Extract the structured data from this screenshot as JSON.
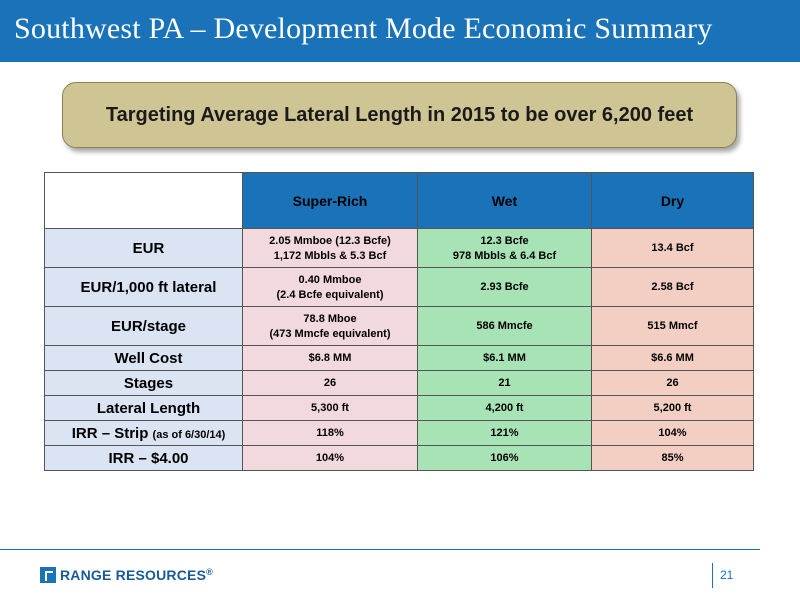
{
  "header": {
    "title": "Southwest PA – Development Mode Economic Summary"
  },
  "callout": {
    "text": "Targeting Average Lateral Length in 2015 to be over 6,200 feet"
  },
  "table": {
    "columns": [
      "Super-Rich",
      "Wet",
      "Dry"
    ],
    "rows": [
      {
        "label": "EUR",
        "label_note": "",
        "cells": [
          {
            "line1": "2.05 Mmboe (12.3 Bcfe)",
            "line2": "1,172 Mbbls & 5.3 Bcf"
          },
          {
            "line1": "12.3 Bcfe",
            "line2": "978 Mbbls & 6.4 Bcf"
          },
          {
            "line1": "13.4 Bcf",
            "line2": ""
          }
        ]
      },
      {
        "label": "EUR/1,000 ft lateral",
        "label_note": "",
        "cells": [
          {
            "line1": "0.40 Mmboe",
            "line2": "(2.4 Bcfe equivalent)"
          },
          {
            "line1": "2.93 Bcfe",
            "line2": ""
          },
          {
            "line1": "2.58 Bcf",
            "line2": ""
          }
        ]
      },
      {
        "label": "EUR/stage",
        "label_note": "",
        "cells": [
          {
            "line1": "78.8 Mboe",
            "line2": "(473 Mmcfe equivalent)"
          },
          {
            "line1": "586 Mmcfe",
            "line2": ""
          },
          {
            "line1": "515 Mmcf",
            "line2": ""
          }
        ]
      },
      {
        "label": "Well Cost",
        "label_note": "",
        "cells": [
          {
            "line1": "$6.8 MM"
          },
          {
            "line1": "$6.1 MM"
          },
          {
            "line1": "$6.6 MM"
          }
        ]
      },
      {
        "label": "Stages",
        "label_note": "",
        "cells": [
          {
            "line1": "26"
          },
          {
            "line1": "21"
          },
          {
            "line1": "26"
          }
        ]
      },
      {
        "label": "Lateral Length",
        "label_note": "",
        "cells": [
          {
            "line1": "5,300 ft"
          },
          {
            "line1": "4,200 ft"
          },
          {
            "line1": "5,200 ft"
          }
        ]
      },
      {
        "label": "IRR – Strip",
        "label_note": "(as of 6/30/14)",
        "cells": [
          {
            "line1": "118%"
          },
          {
            "line1": "121%"
          },
          {
            "line1": "104%"
          }
        ]
      },
      {
        "label": "IRR – $4.00",
        "label_note": "",
        "cells": [
          {
            "line1": "104%"
          },
          {
            "line1": "106%"
          },
          {
            "line1": "85%"
          }
        ]
      }
    ]
  },
  "footer": {
    "logo_text": "RANGE RESOURCES",
    "logo_mark": "®",
    "page_number": "21"
  },
  "colors": {
    "brand_blue": "#1a72b8",
    "callout_tan": "#cfc594",
    "row_header": "#dbe4f3",
    "super_rich": "#f1d9de",
    "wet": "#a8e3b6",
    "dry": "#f3cfc3"
  }
}
